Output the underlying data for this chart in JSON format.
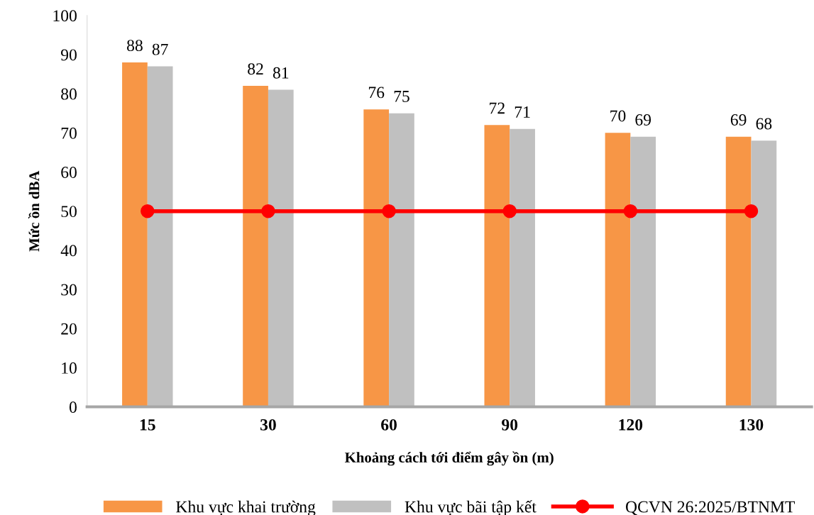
{
  "chart_data": {
    "type": "bar",
    "xlabel": "Khoảng cách tới điểm gây ồn (m)",
    "ylabel": "Mức ồn dBA",
    "categories": [
      "15",
      "30",
      "60",
      "90",
      "120",
      "130"
    ],
    "series": [
      {
        "name": "Khu vực khai trường",
        "color": "#f79646",
        "values": [
          88,
          82,
          76,
          72,
          70,
          69
        ],
        "value_labels": [
          "88",
          "82",
          "76",
          "72",
          "70",
          "69"
        ]
      },
      {
        "name": "Khu vực bãi tập kết",
        "color": "#c0c0c0",
        "values": [
          87,
          81,
          75,
          71,
          69,
          68
        ],
        "value_labels": [
          "87",
          "81",
          "75",
          "71",
          "69",
          "68"
        ]
      },
      {
        "name": "QCVN 26:2025/BTNMT",
        "type": "line",
        "color": "#ff0000",
        "values": [
          50,
          50,
          50,
          50,
          50,
          50
        ],
        "marker": "circle",
        "line_style": "solid"
      }
    ],
    "ylim": [
      0,
      100
    ],
    "yticks": [
      0,
      10,
      20,
      30,
      40,
      50,
      60,
      70,
      80,
      90,
      100
    ],
    "grid": false,
    "legend": "bottom"
  }
}
